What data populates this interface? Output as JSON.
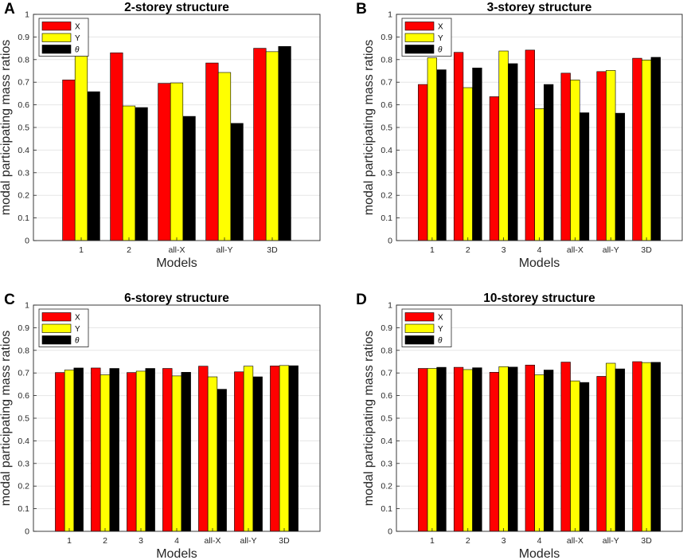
{
  "figure": {
    "panels_note": "four bar-chart panels"
  },
  "legend_entries": [
    "X",
    "Y",
    "θ"
  ],
  "colors": {
    "X": "#ff0000",
    "Y": "#ffff00",
    "θ": "#000000",
    "grid": "#e6e6e6"
  },
  "chart_data": [
    {
      "type": "bar",
      "panel_letter": "A",
      "title": "2-storey structure",
      "xlabel": "Models",
      "ylabel": "modal participating mass ratios",
      "ylim": [
        0,
        1
      ],
      "yticks": [
        "0",
        "0.1",
        "0.2",
        "0.3",
        "0.4",
        "0.5",
        "0.6",
        "0.7",
        "0.8",
        "0.9",
        "1"
      ],
      "categories": [
        "1",
        "2",
        "all-X",
        "all-Y",
        "3D"
      ],
      "series": [
        {
          "name": "X",
          "values": [
            0.71,
            0.83,
            0.695,
            0.785,
            0.85
          ]
        },
        {
          "name": "Y",
          "values": [
            0.82,
            0.595,
            0.697,
            0.743,
            0.835
          ]
        },
        {
          "name": "θ",
          "values": [
            0.658,
            0.588,
            0.549,
            0.518,
            0.858
          ]
        }
      ],
      "legend_position": "top-left",
      "grid": true
    },
    {
      "type": "bar",
      "panel_letter": "B",
      "title": "3-storey structure",
      "xlabel": "Models",
      "ylabel": "modal participating mass ratios",
      "ylim": [
        0,
        1
      ],
      "yticks": [
        "0",
        "0.1",
        "0.2",
        "0.3",
        "0.4",
        "0.5",
        "0.6",
        "0.7",
        "0.8",
        "0.9",
        "1"
      ],
      "categories": [
        "1",
        "2",
        "3",
        "4",
        "all-X",
        "all-Y",
        "3D"
      ],
      "series": [
        {
          "name": "X",
          "values": [
            0.69,
            0.832,
            0.636,
            0.842,
            0.74,
            0.747,
            0.806
          ]
        },
        {
          "name": "Y",
          "values": [
            0.808,
            0.676,
            0.838,
            0.583,
            0.71,
            0.752,
            0.798
          ]
        },
        {
          "name": "θ",
          "values": [
            0.755,
            0.763,
            0.782,
            0.69,
            0.565,
            0.563,
            0.81
          ]
        }
      ],
      "legend_position": "top-left",
      "grid": true
    },
    {
      "type": "bar",
      "panel_letter": "C",
      "title": "6-storey structure",
      "xlabel": "Models",
      "ylabel": "modal participating mass ratios",
      "ylim": [
        0,
        1
      ],
      "yticks": [
        "0",
        "0.1",
        "0.2",
        "0.3",
        "0.4",
        "0.5",
        "0.6",
        "0.7",
        "0.8",
        "0.9",
        "1"
      ],
      "categories": [
        "1",
        "2",
        "3",
        "4",
        "all-X",
        "all-Y",
        "3D"
      ],
      "series": [
        {
          "name": "X",
          "values": [
            0.702,
            0.722,
            0.702,
            0.72,
            0.73,
            0.705,
            0.731
          ]
        },
        {
          "name": "Y",
          "values": [
            0.713,
            0.692,
            0.708,
            0.687,
            0.683,
            0.73,
            0.733
          ]
        },
        {
          "name": "θ",
          "values": [
            0.722,
            0.72,
            0.72,
            0.703,
            0.628,
            0.683,
            0.732
          ]
        }
      ],
      "legend_position": "top-left",
      "grid": true
    },
    {
      "type": "bar",
      "panel_letter": "D",
      "title": "10-storey structure",
      "xlabel": "Models",
      "ylabel": "modal participating mass ratios",
      "ylim": [
        0,
        1
      ],
      "yticks": [
        "0",
        "0.1",
        "0.2",
        "0.3",
        "0.4",
        "0.5",
        "0.6",
        "0.7",
        "0.8",
        "0.9",
        "1"
      ],
      "categories": [
        "1",
        "2",
        "3",
        "4",
        "all-X",
        "all-Y",
        "3D"
      ],
      "series": [
        {
          "name": "X",
          "values": [
            0.72,
            0.725,
            0.703,
            0.735,
            0.748,
            0.685,
            0.75
          ]
        },
        {
          "name": "Y",
          "values": [
            0.72,
            0.715,
            0.728,
            0.692,
            0.665,
            0.743,
            0.746
          ]
        },
        {
          "name": "θ",
          "values": [
            0.725,
            0.723,
            0.726,
            0.713,
            0.658,
            0.718,
            0.747
          ]
        }
      ],
      "legend_position": "top-left",
      "grid": true
    }
  ]
}
